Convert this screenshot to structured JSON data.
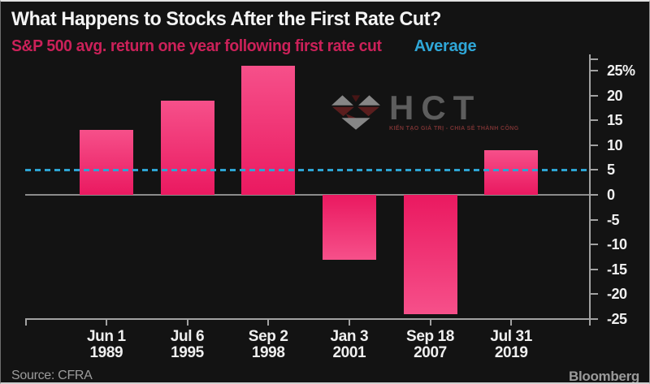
{
  "header": {
    "title": "What Happens to Stocks After the First Rate Cut?",
    "subtitle": "S&P 500 avg. return one year following first rate cut",
    "legend_average": "Average"
  },
  "chart_data": {
    "type": "bar",
    "title": "What Happens to Stocks After the First Rate Cut?",
    "subtitle": "S&P 500 avg. return one year following first rate cut",
    "categories": [
      {
        "line1": "Jun 1",
        "line2": "1989"
      },
      {
        "line1": "Jul 6",
        "line2": "1995"
      },
      {
        "line1": "Sep 2",
        "line2": "1998"
      },
      {
        "line1": "Jan 3",
        "line2": "2001"
      },
      {
        "line1": "Sep 18",
        "line2": "2007"
      },
      {
        "line1": "Jul 31",
        "line2": "2019"
      }
    ],
    "values": [
      13,
      19,
      26,
      -13,
      -24,
      9
    ],
    "unit": "%",
    "average_line": 5,
    "ylim": [
      -25,
      28
    ],
    "yticks": [
      25,
      20,
      15,
      10,
      5,
      0,
      -5,
      -10,
      -15,
      -20,
      -25
    ],
    "ytick_labels": [
      "25%",
      "20",
      "15",
      "10",
      "5",
      "0",
      "-5",
      "-10",
      "-15",
      "-20",
      "-25"
    ],
    "grid": false,
    "legend_position": "top",
    "bar_color": "#ea1960",
    "bar_color_light": "#f6508a",
    "average_color": "#2da4d3",
    "subtitle_color": "#cb2159",
    "axis_color": "#a2a2a2",
    "background_color": "#131313"
  },
  "watermark": {
    "text": "HCT",
    "tagline": "KIẾN TẠO GIÁ TRỊ - CHIA SẺ THÀNH CÔNG"
  },
  "footer": {
    "source": "Source: CFRA",
    "brand": "Bloomberg"
  }
}
